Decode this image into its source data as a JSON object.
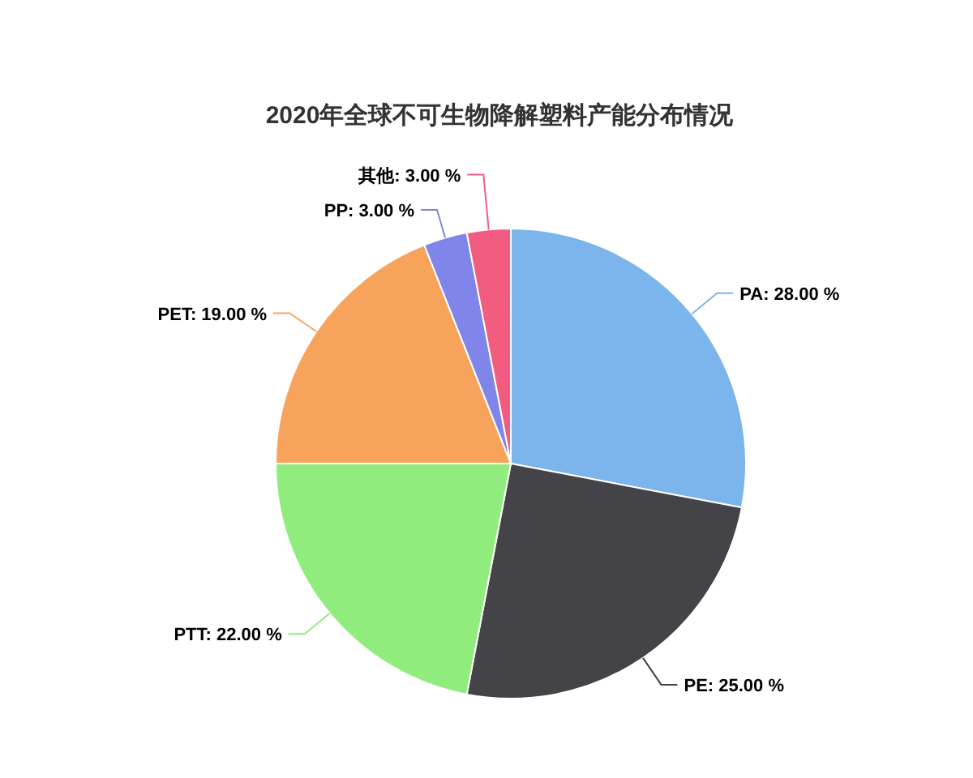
{
  "chart_data": {
    "type": "pie",
    "title": "2020年全球不可生物降解塑料产能分布情况",
    "categories": [
      "PA",
      "PE",
      "PTT",
      "PET",
      "PP",
      "其他"
    ],
    "values": [
      28,
      25,
      22,
      19,
      3,
      3
    ],
    "colors": [
      "#7cb5ec",
      "#434348",
      "#90ed7d",
      "#f7a35c",
      "#8085e9",
      "#f15c80"
    ],
    "value_labels": [
      "28.00 %",
      "25.00 %",
      "22.00 %",
      "19.00 %",
      "3.00 %",
      "3.00 %"
    ]
  }
}
